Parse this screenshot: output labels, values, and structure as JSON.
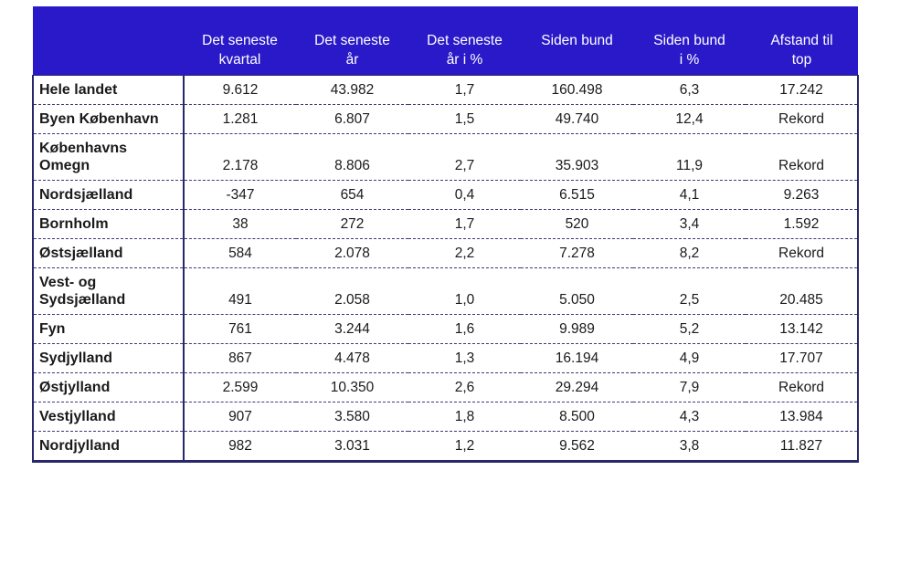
{
  "colors": {
    "header_bg": "#2a19c8",
    "header_text": "#ffffff",
    "border_outer": "#29276b",
    "border_dashed": "#3c3a78",
    "text": "#1a1a1a"
  },
  "chart_data": {
    "type": "table",
    "title": "",
    "corner_label": "",
    "columns": [
      "Det seneste\nkvartal",
      "Det seneste\når",
      "Det seneste\når i %",
      "Siden bund",
      "Siden bund\ni %",
      "Afstand til\ntop"
    ],
    "rows": [
      {
        "region": "Hele landet",
        "values": [
          "9.612",
          "43.982",
          "1,7",
          "160.498",
          "6,3",
          "17.242"
        ]
      },
      {
        "region": "Byen København",
        "values": [
          "1.281",
          "6.807",
          "1,5",
          "49.740",
          "12,4",
          "Rekord"
        ]
      },
      {
        "region": "Københavns\nOmegn",
        "values": [
          "2.178",
          "8.806",
          "2,7",
          "35.903",
          "11,9",
          "Rekord"
        ]
      },
      {
        "region": "Nordsjælland",
        "values": [
          "-347",
          "654",
          "0,4",
          "6.515",
          "4,1",
          "9.263"
        ]
      },
      {
        "region": "Bornholm",
        "values": [
          "38",
          "272",
          "1,7",
          "520",
          "3,4",
          "1.592"
        ]
      },
      {
        "region": "Østsjælland",
        "values": [
          "584",
          "2.078",
          "2,2",
          "7.278",
          "8,2",
          "Rekord"
        ]
      },
      {
        "region": "Vest- og\nSydsjælland",
        "values": [
          "491",
          "2.058",
          "1,0",
          "5.050",
          "2,5",
          "20.485"
        ]
      },
      {
        "region": "Fyn",
        "values": [
          "761",
          "3.244",
          "1,6",
          "9.989",
          "5,2",
          "13.142"
        ]
      },
      {
        "region": "Sydjylland",
        "values": [
          "867",
          "4.478",
          "1,3",
          "16.194",
          "4,9",
          "17.707"
        ]
      },
      {
        "region": "Østjylland",
        "values": [
          "2.599",
          "10.350",
          "2,6",
          "29.294",
          "7,9",
          "Rekord"
        ]
      },
      {
        "region": "Vestjylland",
        "values": [
          "907",
          "3.580",
          "1,8",
          "8.500",
          "4,3",
          "13.984"
        ]
      },
      {
        "region": "Nordjylland",
        "values": [
          "982",
          "3.031",
          "1,2",
          "9.562",
          "3,8",
          "11.827"
        ]
      }
    ]
  }
}
